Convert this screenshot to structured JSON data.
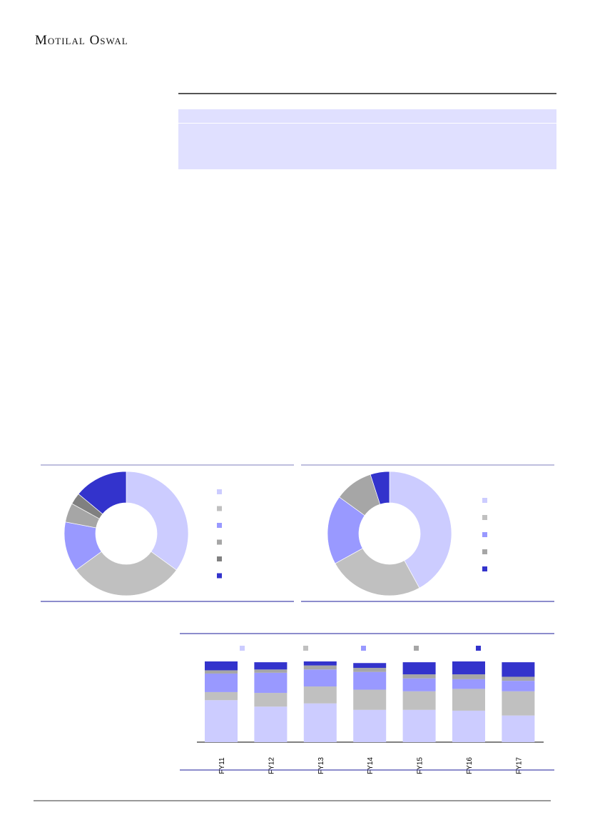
{
  "header": {
    "logo_text": "Motilal Oswal"
  },
  "colors": {
    "s1": "#ccccff",
    "s2": "#c0c0c0",
    "s3": "#9999ff",
    "s4": "#a6a6a6",
    "s5": "#808080",
    "s6": "#3333cc",
    "rule": "#6666bb"
  },
  "chart_data": [
    {
      "type": "pie",
      "donut": true,
      "values": [
        35,
        30,
        13,
        5,
        3,
        14
      ],
      "colors": [
        "#ccccff",
        "#c0c0c0",
        "#9999ff",
        "#a6a6a6",
        "#808080",
        "#3333cc"
      ],
      "legend": "right"
    },
    {
      "type": "pie",
      "donut": true,
      "values": [
        42,
        25,
        18,
        10,
        5
      ],
      "colors": [
        "#ccccff",
        "#c0c0c0",
        "#9999ff",
        "#a6a6a6",
        "#3333cc"
      ],
      "legend": "right"
    },
    {
      "type": "bar",
      "stacked": true,
      "categories": [
        "FY11",
        "FY12",
        "FY13",
        "FY14",
        "FY15",
        "FY16",
        "FY17"
      ],
      "series": [
        {
          "color": "#ccccff",
          "values": [
            52,
            44,
            48,
            40,
            40,
            39,
            33
          ]
        },
        {
          "color": "#c0c0c0",
          "values": [
            10,
            17,
            21,
            25,
            23,
            27,
            30
          ]
        },
        {
          "color": "#9999ff",
          "values": [
            23,
            25,
            21,
            22,
            16,
            12,
            13
          ]
        },
        {
          "color": "#a6a6a6",
          "values": [
            4,
            4,
            5,
            5,
            5,
            6,
            5
          ]
        },
        {
          "color": "#3333cc",
          "values": [
            11,
            9,
            5,
            6,
            15,
            16,
            18
          ]
        }
      ],
      "ylim": [
        0,
        100
      ],
      "legend": "top"
    }
  ]
}
